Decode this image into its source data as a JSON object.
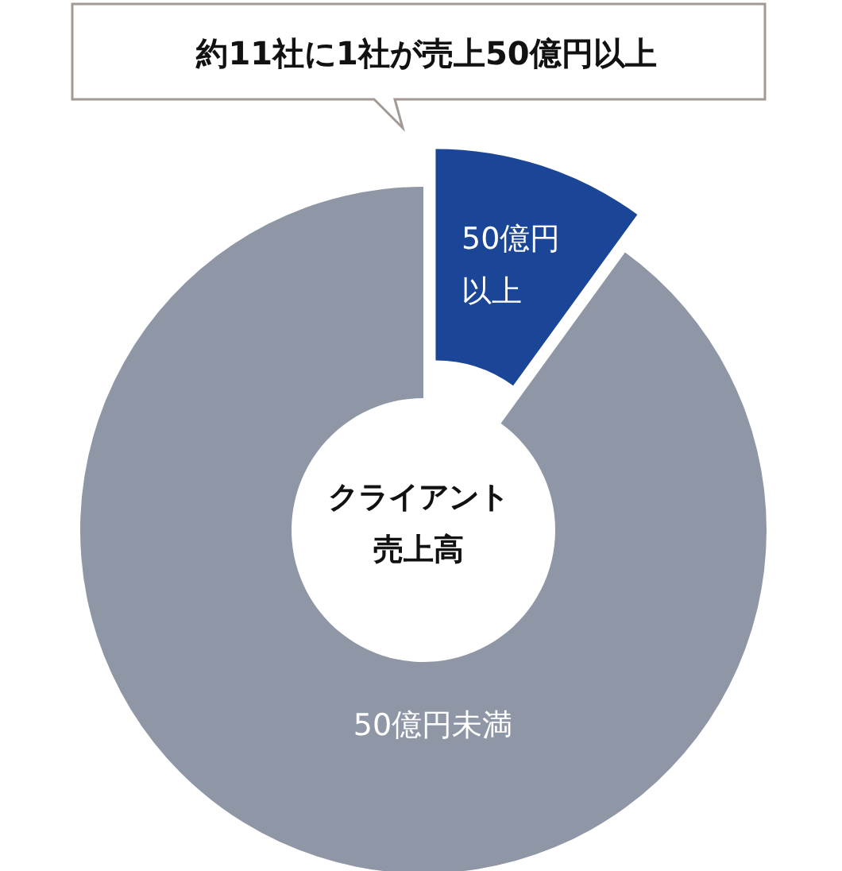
{
  "chart_data": {
    "type": "donut",
    "title": "クライアント売上高",
    "categories": [
      "50億円以上",
      "50億円未満"
    ],
    "values": [
      10,
      90
    ],
    "colors": [
      "#1b4698",
      "#8f96a5"
    ],
    "annotations": [
      "約11社に1社が売上50億円以上"
    ]
  }
}
